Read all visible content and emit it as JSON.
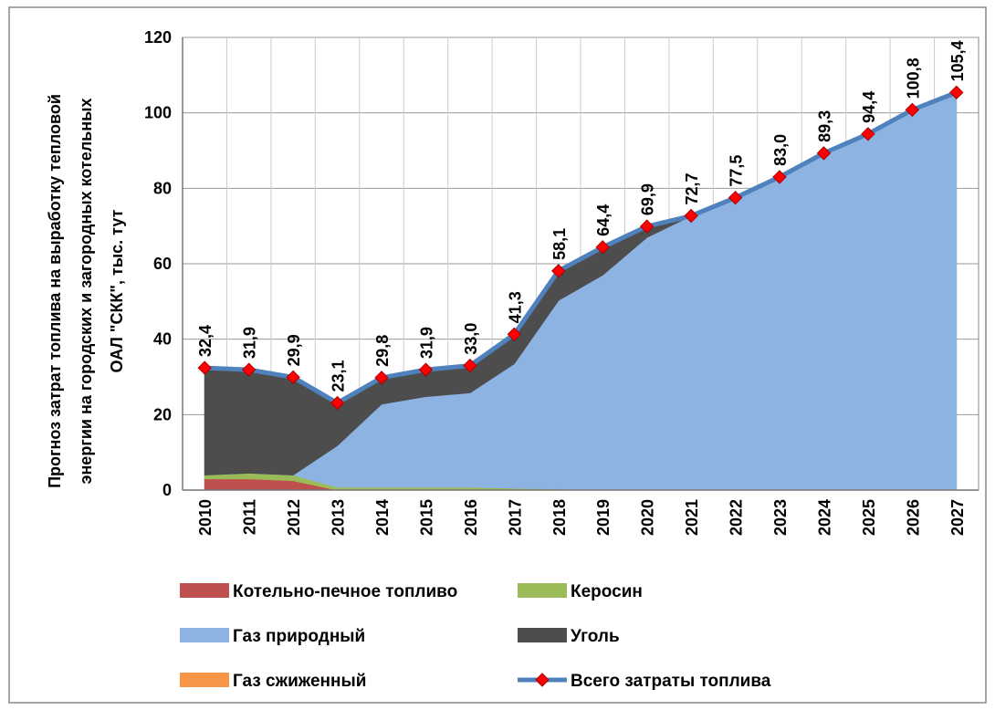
{
  "chart_data": {
    "type": "area",
    "y_label": [
      "Прогноз затрат топлива на выработку тепловой",
      "энергии на городских и загородных котельных",
      "ОАЛ \"СКК\", тыс. тут"
    ],
    "categories": [
      "2010",
      "2011",
      "2012",
      "2013",
      "2014",
      "2015",
      "2016",
      "2017",
      "2018",
      "2019",
      "2020",
      "2021",
      "2022",
      "2023",
      "2024",
      "2025",
      "2026",
      "2027"
    ],
    "ylim": [
      0,
      120
    ],
    "yticks": [
      0,
      20,
      40,
      60,
      80,
      100,
      120
    ],
    "grid": true,
    "legend": "bottom",
    "series": [
      {
        "name": "Котельно-печное топливо",
        "color": "#c0504d",
        "type": "area",
        "values": [
          3,
          3,
          2.5,
          0,
          0,
          0,
          0,
          0,
          0,
          0,
          0,
          0,
          0,
          0,
          0,
          0,
          0,
          0
        ]
      },
      {
        "name": "Керосин",
        "color": "#9bbb59",
        "type": "area",
        "values": [
          1,
          1.5,
          1.5,
          0.8,
          0.8,
          0.8,
          0.8,
          0.5,
          0.3,
          0,
          0,
          0,
          0,
          0,
          0,
          0,
          0,
          0
        ]
      },
      {
        "name": "Газ природный",
        "color": "#8db3e2",
        "type": "area",
        "values": [
          0,
          0,
          0,
          11,
          22,
          24,
          25,
          33,
          50,
          57,
          67,
          72.7,
          77.5,
          83,
          89.3,
          94.4,
          100.8,
          105.4
        ]
      },
      {
        "name": "Уголь",
        "color": "#4d4d4d",
        "type": "area",
        "values": [
          28.4,
          27.4,
          25.9,
          11.3,
          7,
          7.1,
          7.2,
          7.8,
          7.8,
          7.4,
          2.9,
          0,
          0,
          0,
          0,
          0,
          0,
          0
        ]
      },
      {
        "name": "Газ сжиженный",
        "color": "#f79646",
        "type": "area",
        "values": [
          0,
          0,
          0,
          0,
          0,
          0,
          0,
          0,
          0,
          0,
          0,
          0,
          0,
          0,
          0,
          0,
          0,
          0
        ]
      },
      {
        "name": "Всего затраты топлива",
        "color": "#4f81bd",
        "marker_color": "#ff0000",
        "type": "line",
        "values": [
          32.4,
          31.9,
          29.9,
          23.1,
          29.8,
          31.9,
          33.0,
          41.3,
          58.1,
          64.4,
          69.9,
          72.7,
          77.5,
          83.0,
          89.3,
          94.4,
          100.8,
          105.4
        ],
        "value_labels": [
          "32,4",
          "31,9",
          "29,9",
          "23,1",
          "29,8",
          "31,9",
          "33,0",
          "41,3",
          "58,1",
          "64,4",
          "69,9",
          "72,7",
          "77,5",
          "83,0",
          "89,3",
          "94,4",
          "100,8",
          "105,4"
        ]
      }
    ]
  }
}
